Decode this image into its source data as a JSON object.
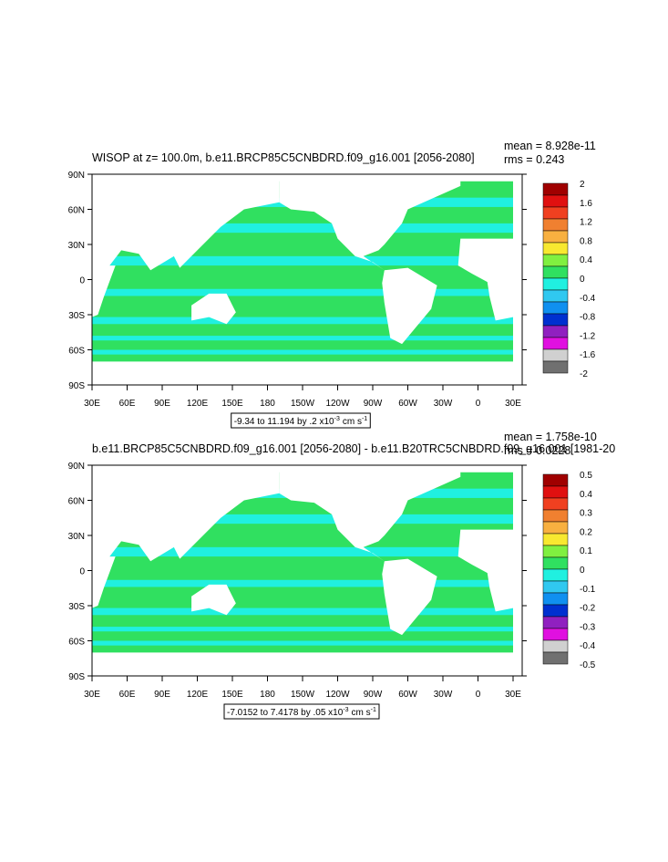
{
  "panels": [
    {
      "title": "WISOP at z= 100.0m, b.e11.BRCP85C5CNBDRD.f09_g16.001 [2056-2080]",
      "mean": "mean = 8.928e-11",
      "rms": "rms = 0.243",
      "lat_labels": [
        "90N",
        "60N",
        "30N",
        "0",
        "30S",
        "60S",
        "90S"
      ],
      "lon_labels": [
        "30E",
        "60E",
        "90E",
        "120E",
        "150E",
        "180",
        "150W",
        "120W",
        "90W",
        "60W",
        "30W",
        "0",
        "30E"
      ],
      "colorbar_labels": [
        2,
        1.6,
        1.2,
        0.8,
        0.4,
        0,
        -0.4,
        -0.8,
        -1.2,
        -1.6,
        -2
      ],
      "range": {
        "text": "-9.34 to 11.194 by .2 x10",
        "exp": "-3",
        "unit": "cm s",
        "unit_exp": "-1"
      }
    },
    {
      "title": "b.e11.BRCP85C5CNBDRD.f09_g16.001 [2056-2080] - b.e11.B20TRC5CNBDRD.f09_g16.001 [1981-20",
      "mean": "mean = 1.758e-10",
      "rms": "rms = 0.0228",
      "lat_labels": [
        "90N",
        "60N",
        "30N",
        "0",
        "30S",
        "60S",
        "90S"
      ],
      "lon_labels": [
        "30E",
        "60E",
        "90E",
        "120E",
        "150E",
        "180",
        "150W",
        "120W",
        "90W",
        "60W",
        "30W",
        "0",
        "30E"
      ],
      "colorbar_labels": [
        0.5,
        0.4,
        0.3,
        0.2,
        0.1,
        0,
        -0.1,
        -0.2,
        -0.3,
        -0.4,
        -0.5
      ],
      "range": {
        "text": "-7.0152 to 7.4178 by .05 x10",
        "exp": "-3",
        "unit": "cm s",
        "unit_exp": "-1"
      }
    }
  ],
  "colorbar_colors": [
    "#a00000",
    "#e01010",
    "#f04020",
    "#f08030",
    "#f8b040",
    "#f8e830",
    "#80f040",
    "#30e060",
    "#20f0e0",
    "#30c8f0",
    "#1090f0",
    "#0030d0",
    "#9020c0",
    "#e010e0",
    "#d0d0d0",
    "#707070"
  ]
}
